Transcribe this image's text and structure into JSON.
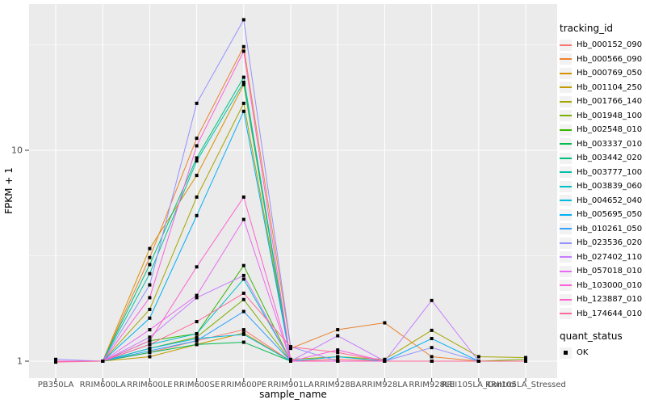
{
  "y_axis": {
    "label": "FPKM + 1",
    "tick_labels": [
      "10",
      "1"
    ]
  },
  "x_axis": {
    "label": "sample_name"
  },
  "legend": {
    "tracking_title": "tracking_id",
    "quant_title": "quant_status",
    "quant_ok_label": "OK"
  },
  "chart_data": {
    "type": "line",
    "title": "",
    "xlabel": "sample_name",
    "ylabel": "FPKM + 1",
    "y_scale": "log10",
    "y_ticks": [
      1,
      10
    ],
    "y_minor_ticks": [
      3.162,
      31.62
    ],
    "ylim": [
      0.83,
      47.0
    ],
    "grid": true,
    "legend_position": "right",
    "panel_bg": "#EBEBEB",
    "grid_color": "#FFFFFF",
    "tick_color": "#333333",
    "tick_label_color": "#4D4D4D",
    "point_marker": "filled-black-square",
    "quant_status_values": [
      "OK"
    ],
    "categories": [
      "PB350LA",
      "RRIM600LA",
      "RRIM600LE",
      "RRIM600SE",
      "RRIM600PE",
      "RRIM901LA",
      "RRIM928BA",
      "RRIM928LA",
      "RRIM928LE",
      "RRII105LA_Control",
      "RRII105LA_Stressed"
    ],
    "series": [
      {
        "name": "Hb_000152_090",
        "color": "#F8766D",
        "values": [
          1.0,
          1.0,
          1.1,
          1.25,
          1.41,
          1.0,
          1.02,
          1.0,
          1.0,
          1.0,
          1.0
        ]
      },
      {
        "name": "Hb_000566_090",
        "color": "#EA8331",
        "values": [
          1.0,
          1.0,
          3.1,
          11.4,
          31.0,
          1.15,
          1.41,
          1.52,
          1.05,
          1.0,
          1.0
        ]
      },
      {
        "name": "Hb_000769_050",
        "color": "#D89000",
        "values": [
          1.0,
          1.0,
          3.42,
          7.6,
          20.5,
          1.0,
          1.0,
          1.0,
          1.0,
          1.0,
          1.0
        ]
      },
      {
        "name": "Hb_001104_250",
        "color": "#C09B00",
        "values": [
          1.0,
          1.0,
          1.05,
          1.2,
          1.36,
          1.0,
          1.0,
          1.0,
          1.0,
          1.0,
          1.0
        ]
      },
      {
        "name": "Hb_001766_140",
        "color": "#A3A500",
        "values": [
          1.0,
          1.0,
          1.76,
          6.0,
          16.7,
          1.02,
          1.05,
          1.02,
          1.4,
          1.05,
          1.04
        ]
      },
      {
        "name": "Hb_001948_100",
        "color": "#7CAE00",
        "values": [
          1.0,
          1.0,
          1.15,
          1.3,
          1.96,
          1.0,
          1.0,
          1.0,
          1.0,
          1.0,
          1.02
        ]
      },
      {
        "name": "Hb_002548_010",
        "color": "#39B600",
        "values": [
          1.0,
          1.0,
          1.25,
          1.35,
          2.84,
          1.0,
          1.0,
          1.0,
          1.0,
          1.0,
          1.0
        ]
      },
      {
        "name": "Hb_003337_010",
        "color": "#00BB4E",
        "values": [
          1.0,
          1.0,
          1.1,
          1.2,
          1.23,
          1.0,
          1.0,
          1.0,
          1.0,
          1.0,
          1.0
        ]
      },
      {
        "name": "Hb_003442_020",
        "color": "#00BF7D",
        "values": [
          1.0,
          1.0,
          2.87,
          9.2,
          22.2,
          1.0,
          1.0,
          1.0,
          1.0,
          1.0,
          1.0
        ]
      },
      {
        "name": "Hb_003777_100",
        "color": "#00C1A3",
        "values": [
          1.0,
          1.0,
          2.6,
          8.9,
          21.0,
          1.0,
          1.0,
          1.0,
          1.0,
          1.0,
          1.0
        ]
      },
      {
        "name": "Hb_003839_060",
        "color": "#00BFC4",
        "values": [
          1.0,
          1.0,
          1.2,
          1.35,
          2.45,
          1.0,
          1.0,
          1.0,
          1.0,
          1.0,
          1.0
        ]
      },
      {
        "name": "Hb_004652_040",
        "color": "#00BAE0",
        "values": [
          1.0,
          1.0,
          1.15,
          1.28,
          1.34,
          1.0,
          1.05,
          1.0,
          1.0,
          1.0,
          1.0
        ]
      },
      {
        "name": "Hb_005695_050",
        "color": "#00B0F6",
        "values": [
          1.0,
          1.0,
          1.6,
          4.9,
          15.3,
          1.0,
          1.0,
          1.0,
          1.28,
          1.0,
          1.0
        ]
      },
      {
        "name": "Hb_010261_050",
        "color": "#35A2FF",
        "values": [
          1.0,
          1.0,
          1.12,
          1.25,
          1.72,
          1.0,
          1.0,
          1.0,
          1.0,
          1.0,
          1.0
        ]
      },
      {
        "name": "Hb_023536_020",
        "color": "#9590FF",
        "values": [
          1.02,
          1.0,
          2.3,
          16.7,
          41.6,
          1.17,
          1.0,
          1.0,
          1.16,
          1.0,
          1.0
        ]
      },
      {
        "name": "Hb_027402_110",
        "color": "#C77CFF",
        "values": [
          1.0,
          1.0,
          1.3,
          2.0,
          2.55,
          1.0,
          1.32,
          1.0,
          1.94,
          1.0,
          1.0
        ]
      },
      {
        "name": "Hb_057018_010",
        "color": "#E76BF3",
        "values": [
          1.0,
          1.0,
          1.41,
          2.05,
          4.7,
          1.0,
          1.0,
          1.0,
          1.0,
          1.0,
          1.0
        ]
      },
      {
        "name": "Hb_103000_010",
        "color": "#FA62DB",
        "values": [
          1.0,
          1.0,
          2.0,
          10.5,
          29.5,
          1.0,
          1.13,
          1.0,
          1.0,
          1.0,
          1.0
        ]
      },
      {
        "name": "Hb_123887_010",
        "color": "#FF61CC",
        "values": [
          1.0,
          1.0,
          1.25,
          2.8,
          6.0,
          1.0,
          1.0,
          1.0,
          1.0,
          1.0,
          1.0
        ]
      },
      {
        "name": "Hb_174644_010",
        "color": "#FF6A98",
        "values": [
          0.99,
          1.0,
          1.2,
          1.54,
          2.1,
          1.17,
          1.1,
          1.0,
          1.0,
          1.0,
          1.0
        ]
      }
    ]
  }
}
